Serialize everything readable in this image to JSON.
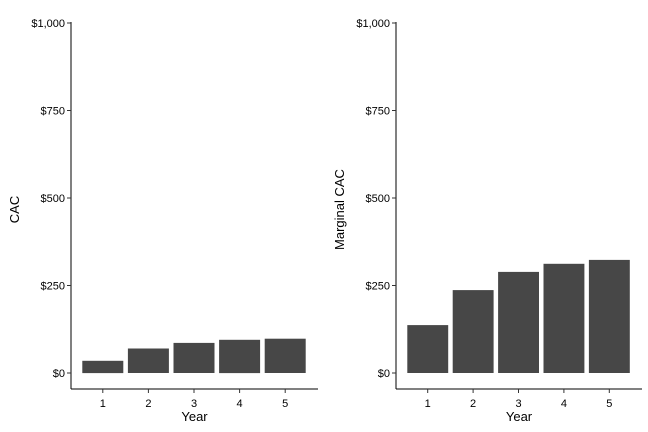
{
  "chart_data": [
    {
      "type": "bar",
      "categories": [
        "1",
        "2",
        "3",
        "4",
        "5"
      ],
      "values": [
        35,
        70,
        86,
        95,
        98
      ],
      "xlabel": "Year",
      "ylabel": "CAC",
      "ylim": [
        0,
        1000
      ],
      "yticks": [
        {
          "value": 0,
          "label": "$0"
        },
        {
          "value": 250,
          "label": "$250"
        },
        {
          "value": 500,
          "label": "$500"
        },
        {
          "value": 750,
          "label": "$750"
        },
        {
          "value": 1000,
          "label": "$1,000"
        }
      ],
      "bar_color": "#474747",
      "grid": false
    },
    {
      "type": "bar",
      "categories": [
        "1",
        "2",
        "3",
        "4",
        "5"
      ],
      "values": [
        137,
        237,
        289,
        312,
        323
      ],
      "xlabel": "Year",
      "ylabel": "Marginal CAC",
      "ylim": [
        0,
        1000
      ],
      "yticks": [
        {
          "value": 0,
          "label": "$0"
        },
        {
          "value": 250,
          "label": "$250"
        },
        {
          "value": 500,
          "label": "$500"
        },
        {
          "value": 750,
          "label": "$750"
        },
        {
          "value": 1000,
          "label": "$1,000"
        }
      ],
      "bar_color": "#474747",
      "grid": false
    }
  ]
}
